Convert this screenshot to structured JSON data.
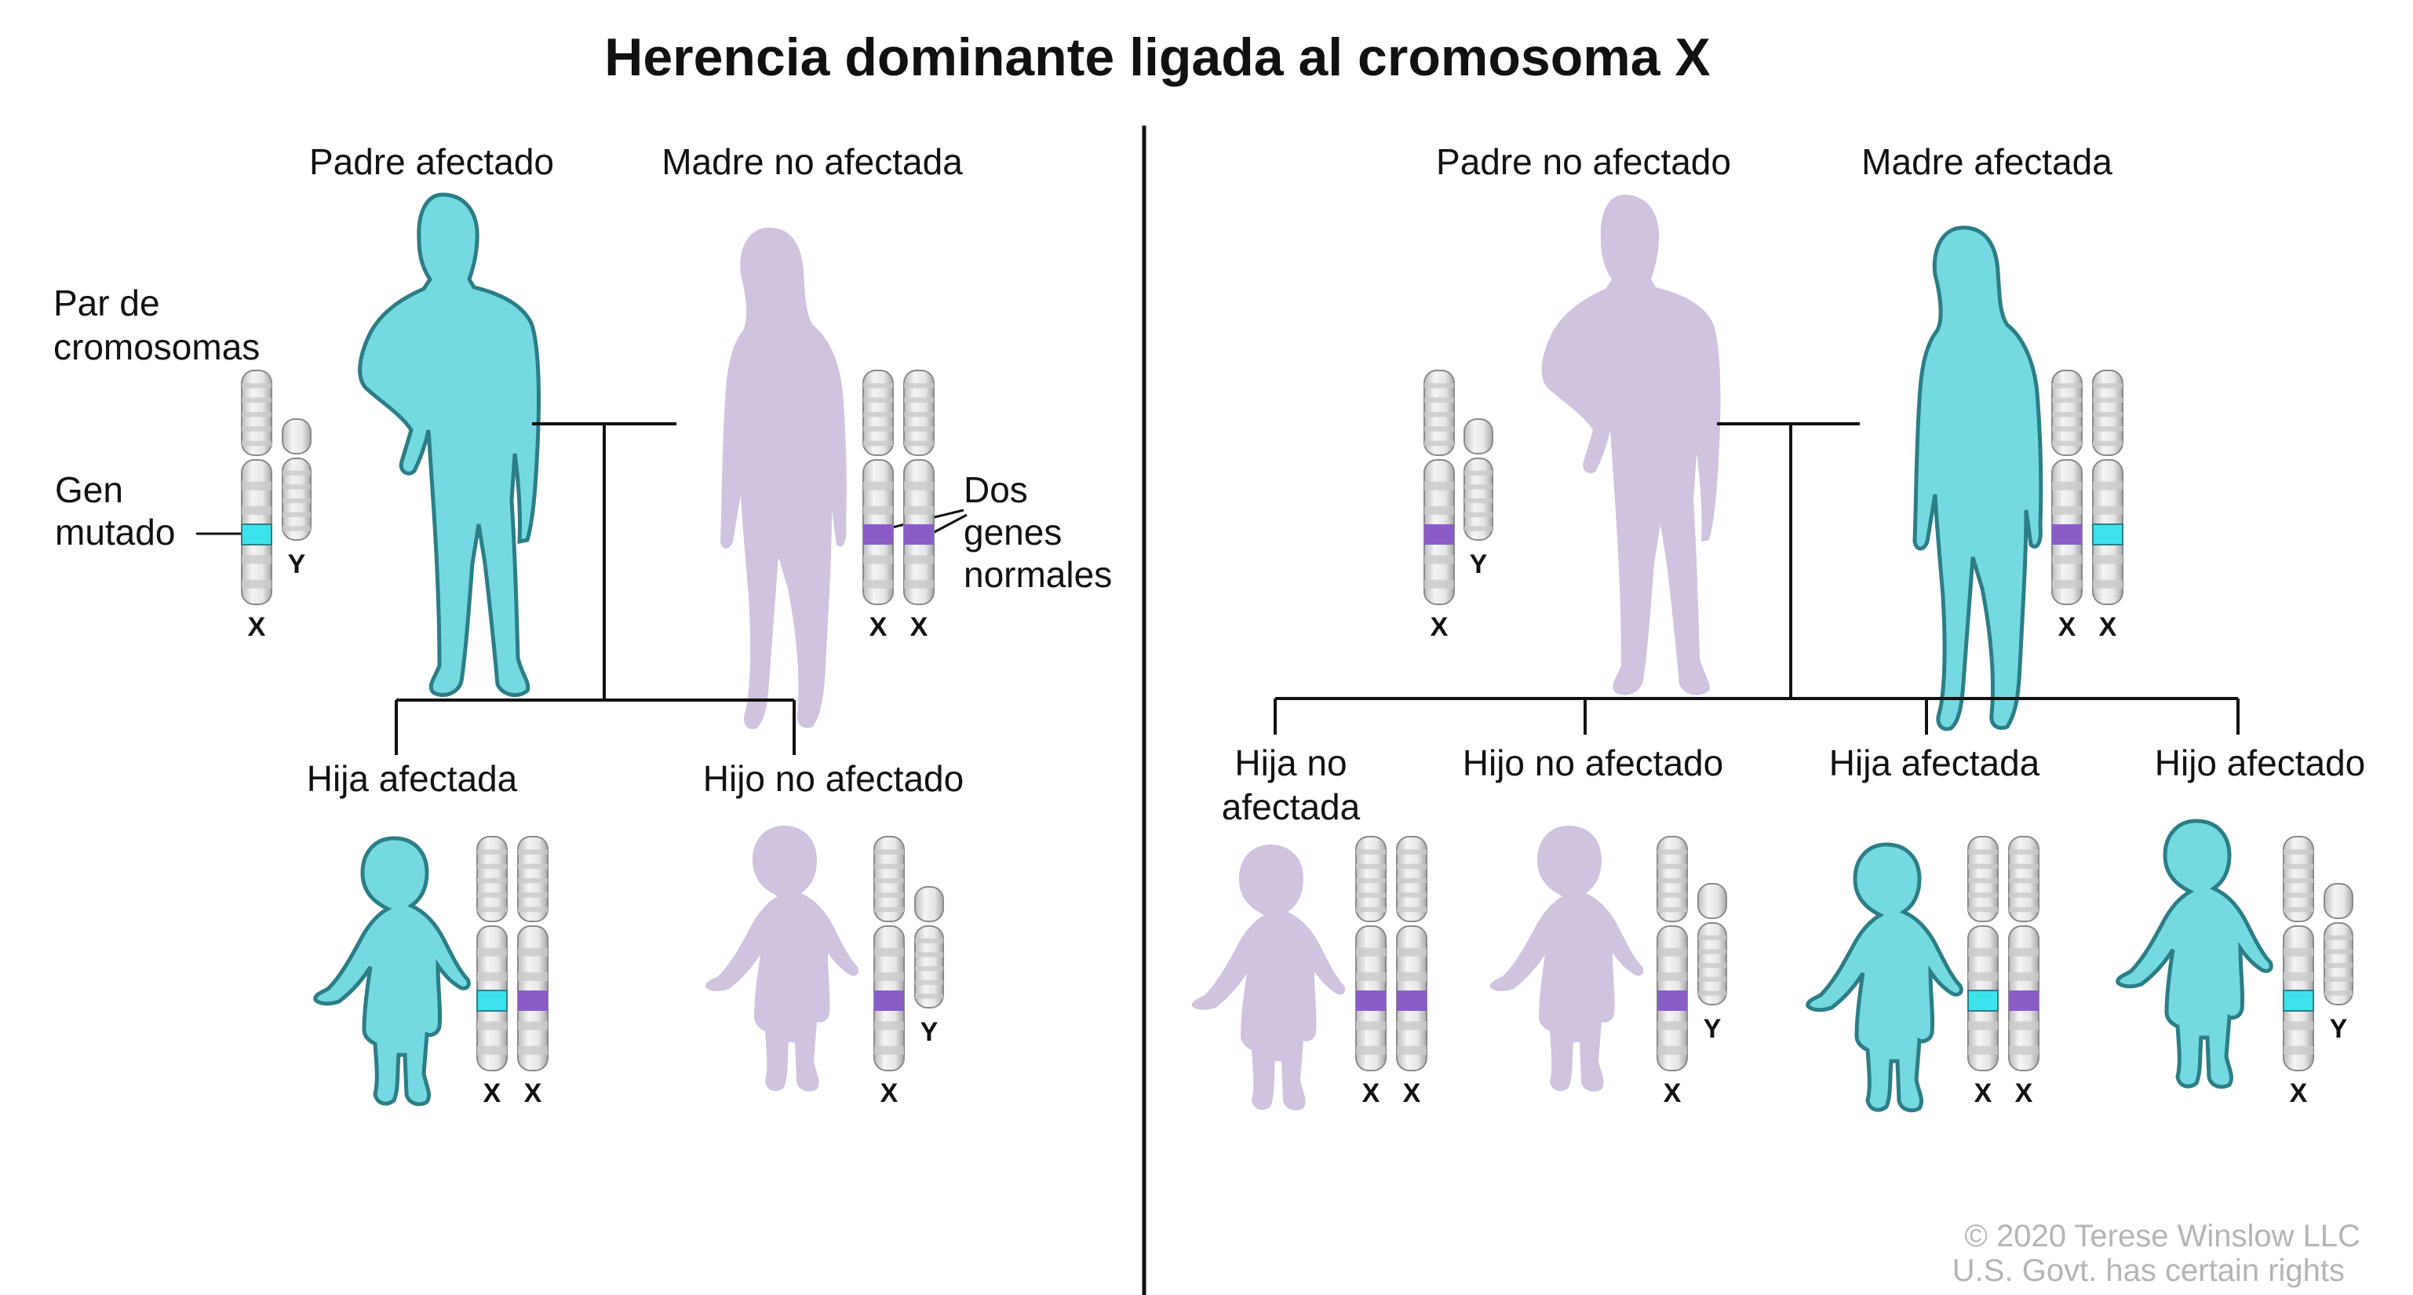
{
  "title": "Herencia dominante ligada al cromosoma X",
  "colors": {
    "affected": "#74D9E0",
    "affected_outline": "#2C7E86",
    "unaffected": "#CFC3E0",
    "mutated_gene": "#3DE3EC",
    "normal_gene": "#8A5CC8",
    "chromosome": "#e8e8e8"
  },
  "left": {
    "father": "Padre afectado",
    "mother": "Madre no afectada",
    "legend_pair_line1": "Par de",
    "legend_pair_line2": "cromosomas",
    "legend_gene_line1": "Gen",
    "legend_gene_line2": "mutado",
    "legend_normal_line1": "Dos",
    "legend_normal_line2": "genes",
    "legend_normal_line3": "normales",
    "daughter": "Hija afectada",
    "son": "Hijo no afectado"
  },
  "right": {
    "father": "Padre no afectado",
    "mother": "Madre afectada",
    "child1_line1": "Hija no",
    "child1_line2": "afectada",
    "child2": "Hijo no afectado",
    "child3": "Hija afectada",
    "child4": "Hijo afectado"
  },
  "chromosome_labels": {
    "x": "X",
    "y": "Y"
  },
  "copyright_line1": "© 2020 Terese Winslow LLC",
  "copyright_line2": "U.S. Govt. has certain rights"
}
